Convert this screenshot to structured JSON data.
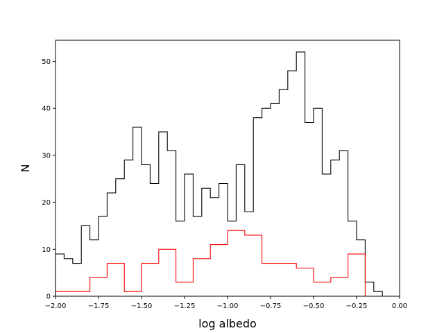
{
  "chart_data": {
    "type": "histogram",
    "title": "",
    "xlabel": "log albedo",
    "ylabel": "N",
    "xlim": [
      -2.0,
      0.0
    ],
    "ylim": [
      0,
      54.5
    ],
    "x_ticks": [
      -2.0,
      -1.75,
      -1.5,
      -1.25,
      -1.0,
      -0.75,
      -0.5,
      -0.25,
      0.0
    ],
    "x_tick_labels": [
      "−2.00",
      "−1.75",
      "−1.50",
      "−1.25",
      "−1.00",
      "−0.75",
      "−0.50",
      "−0.25",
      "0.00"
    ],
    "y_ticks": [
      0,
      10,
      20,
      30,
      40,
      50
    ],
    "y_tick_labels": [
      "0",
      "10",
      "20",
      "30",
      "40",
      "50"
    ],
    "grid": false,
    "series": [
      {
        "color": "#000000",
        "bin_width": 0.05,
        "bin_start": -2.0,
        "counts": [
          9,
          8,
          7,
          15,
          12,
          17,
          22,
          25,
          29,
          36,
          28,
          24,
          35,
          31,
          16,
          26,
          17,
          23,
          21,
          24,
          16,
          28,
          18,
          38,
          40,
          41,
          44,
          48,
          52,
          37,
          40,
          26,
          29,
          31,
          16,
          12,
          3,
          1,
          0,
          0
        ]
      },
      {
        "color": "#ff0000",
        "bin_width": 0.1,
        "bin_start": -2.0,
        "counts": [
          1,
          1,
          4,
          7,
          1,
          7,
          10,
          3,
          8,
          11,
          14,
          13,
          7,
          7,
          6,
          3,
          4,
          9,
          0,
          0
        ]
      }
    ]
  }
}
